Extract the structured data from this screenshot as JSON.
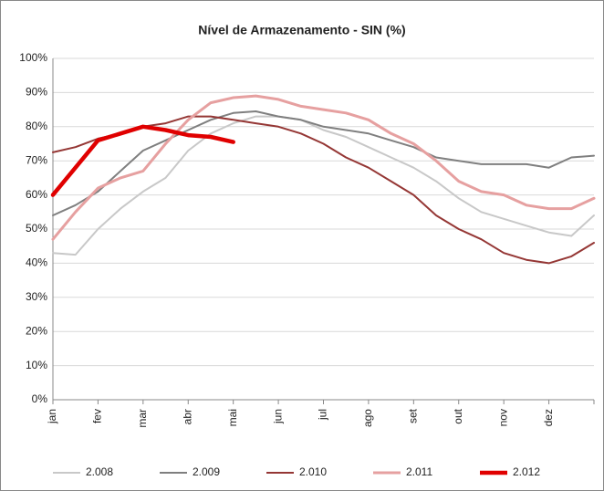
{
  "chart_data": {
    "type": "line",
    "title": "Nível de Armazenamento - SIN (%)",
    "categories": [
      "jan",
      null,
      "fev",
      null,
      "mar",
      null,
      "abr",
      null,
      "mai",
      null,
      "jun",
      null,
      "jul",
      null,
      "ago",
      null,
      "set",
      null,
      "out",
      null,
      "nov",
      null,
      "dez",
      null,
      null
    ],
    "series": [
      {
        "name": "2.008",
        "color": "#c8c8c8",
        "width": 2,
        "values": [
          43,
          42.5,
          50,
          56,
          61,
          65,
          73,
          78,
          81,
          83,
          83,
          82,
          79,
          77,
          74,
          71,
          68,
          64,
          59,
          55,
          53,
          51,
          49,
          48,
          54
        ]
      },
      {
        "name": "2.009",
        "color": "#7f7f7f",
        "width": 2,
        "values": [
          54,
          57,
          61,
          67,
          73,
          76,
          79,
          82,
          84,
          84.5,
          83,
          82,
          80,
          79,
          78,
          76,
          74,
          71,
          70,
          69,
          69,
          69,
          68,
          71,
          71.5
        ]
      },
      {
        "name": "2.010",
        "color": "#953735",
        "width": 2,
        "values": [
          72.5,
          74,
          76.5,
          78,
          80,
          81,
          83,
          83,
          82,
          81,
          80,
          78,
          75,
          71,
          68,
          64,
          60,
          54,
          50,
          47,
          43,
          41,
          40,
          42,
          46
        ]
      },
      {
        "name": "2.011",
        "color": "#e6a0a0",
        "width": 3,
        "values": [
          47,
          55,
          62,
          65,
          67,
          75,
          82,
          87,
          88.5,
          89,
          88,
          86,
          85,
          84,
          82,
          78,
          75,
          70,
          64,
          61,
          60,
          57,
          56,
          56,
          59
        ]
      },
      {
        "name": "2.012",
        "color": "#e00000",
        "width": 4.5,
        "values": [
          60,
          68,
          76,
          78,
          80,
          79,
          77.5,
          77,
          75.5,
          null,
          null,
          null,
          null,
          null,
          null,
          null,
          null,
          null,
          null,
          null,
          null,
          null,
          null,
          null,
          null
        ]
      }
    ],
    "ylim": [
      0,
      100
    ],
    "yticks": [
      {
        "value": 0,
        "label": "0%"
      },
      {
        "value": 10,
        "label": "10%"
      },
      {
        "value": 20,
        "label": "20%"
      },
      {
        "value": 30,
        "label": "30%"
      },
      {
        "value": 40,
        "label": "40%"
      },
      {
        "value": 50,
        "label": "50%"
      },
      {
        "value": 60,
        "label": "60%"
      },
      {
        "value": 70,
        "label": "70%"
      },
      {
        "value": 80,
        "label": "80%"
      },
      {
        "value": 90,
        "label": "90%"
      },
      {
        "value": 100,
        "label": "100%"
      }
    ],
    "grid": true,
    "legend": "bottom"
  }
}
